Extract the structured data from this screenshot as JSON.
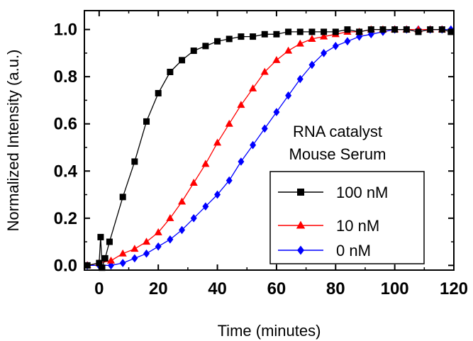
{
  "chart_data": {
    "type": "line",
    "title": "",
    "xlabel": "Time (minutes)",
    "ylabel": "Normalized Intensity (a.u.)",
    "xlim": [
      -5,
      120
    ],
    "ylim": [
      -0.02,
      1.08
    ],
    "x_ticks": [
      0,
      20,
      40,
      60,
      80,
      100,
      120
    ],
    "y_ticks": [
      0.0,
      0.2,
      0.4,
      0.6,
      0.8,
      1.0
    ],
    "x_tick_labels": [
      "0",
      "20",
      "40",
      "60",
      "80",
      "100",
      "120"
    ],
    "y_tick_labels": [
      "0.0",
      "0.2",
      "0.4",
      "0.6",
      "0.8",
      "1.0"
    ],
    "grid": false,
    "legend_position": "lower-right",
    "annotation": [
      "RNA catalyst",
      "Mouse Serum"
    ],
    "series": [
      {
        "name": "100 nM",
        "color": "#000000",
        "marker": "square",
        "x": [
          -4,
          0,
          0.5,
          1,
          2,
          3.5,
          8,
          12,
          16,
          20,
          24,
          28,
          32,
          36,
          40,
          44,
          48,
          52,
          56,
          60,
          64,
          68,
          72,
          76,
          80,
          84,
          88,
          92,
          96,
          100,
          104,
          108,
          112,
          116,
          119
        ],
        "y": [
          0.0,
          0.01,
          0.12,
          -0.01,
          0.03,
          0.1,
          0.29,
          0.44,
          0.61,
          0.73,
          0.82,
          0.87,
          0.91,
          0.93,
          0.95,
          0.96,
          0.97,
          0.97,
          0.98,
          0.98,
          0.99,
          0.99,
          0.99,
          0.99,
          0.99,
          1.0,
          0.99,
          1.0,
          1.0,
          1.0,
          1.0,
          0.99,
          1.0,
          1.0,
          0.99
        ]
      },
      {
        "name": "10 nM",
        "color": "#ff0000",
        "marker": "triangle",
        "x": [
          -4,
          0,
          4,
          8,
          12,
          16,
          20,
          24,
          28,
          32,
          36,
          40,
          44,
          48,
          52,
          56,
          60,
          64,
          68,
          72,
          76,
          80,
          84,
          88,
          92,
          96,
          100,
          104,
          108,
          112,
          116
        ],
        "y": [
          0.0,
          0.01,
          0.02,
          0.05,
          0.07,
          0.1,
          0.14,
          0.2,
          0.27,
          0.35,
          0.43,
          0.52,
          0.6,
          0.68,
          0.75,
          0.82,
          0.87,
          0.91,
          0.94,
          0.96,
          0.97,
          0.98,
          0.99,
          0.99,
          1.0,
          1.0,
          1.0,
          1.0,
          1.0,
          1.0,
          1.0
        ]
      },
      {
        "name": "0 nM",
        "color": "#0000ff",
        "marker": "diamond",
        "x": [
          -4,
          0,
          4,
          8,
          12,
          16,
          20,
          24,
          28,
          32,
          36,
          40,
          44,
          48,
          52,
          56,
          60,
          64,
          68,
          72,
          76,
          80,
          84,
          88,
          92,
          96,
          100,
          104,
          108,
          112,
          116,
          119
        ],
        "y": [
          0.0,
          0.0,
          0.0,
          0.01,
          0.03,
          0.05,
          0.08,
          0.11,
          0.15,
          0.2,
          0.25,
          0.3,
          0.36,
          0.44,
          0.51,
          0.58,
          0.65,
          0.72,
          0.79,
          0.85,
          0.9,
          0.93,
          0.95,
          0.97,
          0.98,
          0.99,
          1.0,
          1.0,
          1.0,
          1.0,
          1.0,
          1.0
        ]
      }
    ]
  }
}
